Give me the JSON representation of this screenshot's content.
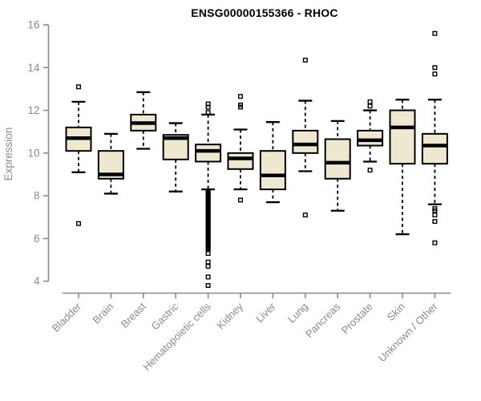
{
  "chart_data": {
    "type": "boxplot",
    "title": "ENSG00000155366 - RHOC",
    "ylabel": "Expression",
    "ylim": [
      3.5,
      16
    ],
    "yticks": [
      4,
      6,
      8,
      10,
      12,
      14,
      16
    ],
    "grid": false,
    "categories": [
      "Bladder",
      "Brain",
      "Breast",
      "Gastric",
      "Hematopoietic cells",
      "Kidney",
      "Liver",
      "Lung",
      "Pancreas",
      "Prostate",
      "Skin",
      "Unknown / Other"
    ],
    "boxes": [
      {
        "category": "Bladder",
        "whisker_low": 9.1,
        "q1": 10.1,
        "median": 10.7,
        "q3": 11.2,
        "whisker_high": 12.4,
        "outliers": [
          13.1,
          6.7
        ],
        "dense_outlier_range": null
      },
      {
        "category": "Brain",
        "whisker_low": 8.1,
        "q1": 8.8,
        "median": 9.0,
        "q3": 10.1,
        "whisker_high": 10.9,
        "outliers": [],
        "dense_outlier_range": null
      },
      {
        "category": "Breast",
        "whisker_low": 10.2,
        "q1": 11.05,
        "median": 11.4,
        "q3": 11.8,
        "whisker_high": 12.85,
        "outliers": [],
        "dense_outlier_range": null
      },
      {
        "category": "Gastric",
        "whisker_low": 8.2,
        "q1": 9.7,
        "median": 10.7,
        "q3": 10.85,
        "whisker_high": 11.4,
        "outliers": [],
        "dense_outlier_range": null
      },
      {
        "category": "Hematopoietic cells",
        "whisker_low": 8.3,
        "q1": 9.6,
        "median": 10.1,
        "q3": 10.4,
        "whisker_high": 11.8,
        "outliers": [
          12.3,
          12.15,
          11.9,
          5.3,
          4.9,
          4.7,
          4.2,
          3.8
        ],
        "dense_outlier_range": [
          8.2,
          5.5
        ]
      },
      {
        "category": "Kidney",
        "whisker_low": 8.3,
        "q1": 9.25,
        "median": 9.75,
        "q3": 10.0,
        "whisker_high": 11.1,
        "outliers": [
          12.65,
          12.25,
          12.15,
          7.8
        ],
        "dense_outlier_range": null
      },
      {
        "category": "Liver",
        "whisker_low": 7.7,
        "q1": 8.3,
        "median": 8.95,
        "q3": 10.1,
        "whisker_high": 11.45,
        "outliers": [],
        "dense_outlier_range": null
      },
      {
        "category": "Lung",
        "whisker_low": 9.15,
        "q1": 10.0,
        "median": 10.4,
        "q3": 11.05,
        "whisker_high": 12.45,
        "outliers": [
          14.35,
          7.1
        ],
        "dense_outlier_range": null
      },
      {
        "category": "Pancreas",
        "whisker_low": 7.3,
        "q1": 8.8,
        "median": 9.55,
        "q3": 10.65,
        "whisker_high": 11.5,
        "outliers": [],
        "dense_outlier_range": null
      },
      {
        "category": "Prostate",
        "whisker_low": 9.6,
        "q1": 10.35,
        "median": 10.6,
        "q3": 11.05,
        "whisker_high": 12.0,
        "outliers": [
          12.4,
          12.2,
          9.2
        ],
        "dense_outlier_range": null
      },
      {
        "category": "Skin",
        "whisker_low": 6.2,
        "q1": 9.5,
        "median": 11.2,
        "q3": 12.0,
        "whisker_high": 12.5,
        "outliers": [],
        "dense_outlier_range": null
      },
      {
        "category": "Unknown / Other",
        "whisker_low": 7.6,
        "q1": 9.5,
        "median": 10.35,
        "q3": 10.9,
        "whisker_high": 12.5,
        "outliers": [
          15.6,
          14.0,
          13.7,
          7.4,
          7.3,
          7.1,
          6.8,
          5.8
        ],
        "dense_outlier_range": null
      }
    ],
    "legend": null
  },
  "colors": {
    "box_fill": "#EDE8CF",
    "box_border": "#000000",
    "median": "#000000",
    "axis": "#8a8a8a",
    "tick_label": "#8a8a8a",
    "title": "#000000"
  }
}
